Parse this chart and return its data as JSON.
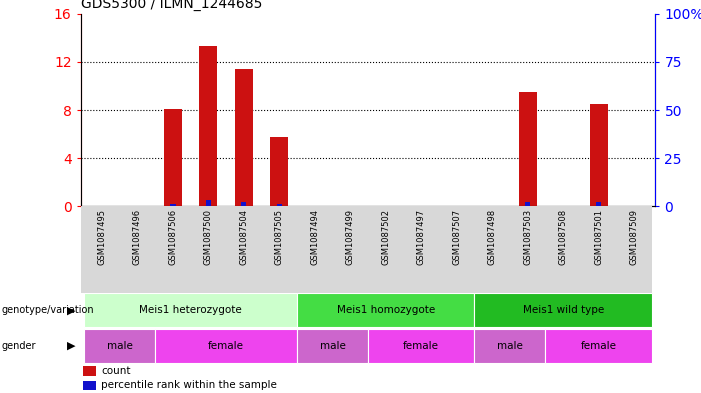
{
  "title": "GDS5300 / ILMN_1244685",
  "samples": [
    "GSM1087495",
    "GSM1087496",
    "GSM1087506",
    "GSM1087500",
    "GSM1087504",
    "GSM1087505",
    "GSM1087494",
    "GSM1087499",
    "GSM1087502",
    "GSM1087497",
    "GSM1087507",
    "GSM1087498",
    "GSM1087503",
    "GSM1087508",
    "GSM1087501",
    "GSM1087509"
  ],
  "count_values": [
    0,
    0,
    8.1,
    13.3,
    11.4,
    5.8,
    0,
    0,
    0,
    0,
    0,
    0,
    9.5,
    0,
    8.5,
    0
  ],
  "percentile_values": [
    0,
    0,
    1.2,
    3.4,
    2.5,
    1.0,
    0,
    0.2,
    0,
    0,
    0,
    0,
    2.2,
    0,
    2.5,
    0
  ],
  "ylim_left": [
    0,
    16
  ],
  "ylim_right": [
    0,
    100
  ],
  "yticks_left": [
    0,
    4,
    8,
    12,
    16
  ],
  "yticks_right": [
    0,
    25,
    50,
    75,
    100
  ],
  "ytick_right_labels": [
    "0",
    "25",
    "50",
    "75",
    "100%"
  ],
  "bar_color_red": "#cc1111",
  "bar_color_blue": "#1111cc",
  "genotype_groups": [
    {
      "label": "Meis1 heterozygote",
      "start": 0,
      "end": 6,
      "color": "#ccffcc"
    },
    {
      "label": "Meis1 homozygote",
      "start": 6,
      "end": 11,
      "color": "#44dd44"
    },
    {
      "label": "Meis1 wild type",
      "start": 11,
      "end": 16,
      "color": "#22bb22"
    }
  ],
  "gender_groups": [
    {
      "label": "male",
      "start": 0,
      "end": 2,
      "color": "#cc66cc"
    },
    {
      "label": "female",
      "start": 2,
      "end": 6,
      "color": "#ee44ee"
    },
    {
      "label": "male",
      "start": 6,
      "end": 8,
      "color": "#cc66cc"
    },
    {
      "label": "female",
      "start": 8,
      "end": 11,
      "color": "#ee44ee"
    },
    {
      "label": "male",
      "start": 11,
      "end": 13,
      "color": "#cc66cc"
    },
    {
      "label": "female",
      "start": 13,
      "end": 16,
      "color": "#ee44ee"
    }
  ],
  "legend_items": [
    {
      "label": "count",
      "color": "#cc1111"
    },
    {
      "label": "percentile rank within the sample",
      "color": "#1111cc"
    }
  ],
  "bar_width": 0.5,
  "n_samples": 16
}
